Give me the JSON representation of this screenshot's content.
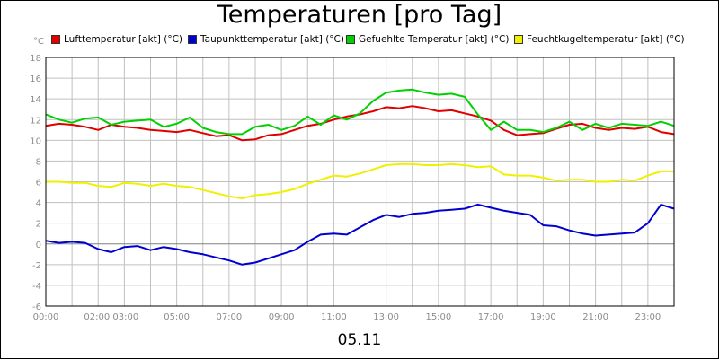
{
  "colors": {
    "background": "#ffffff",
    "grid": "#c0c0c0",
    "axis": "#000000",
    "tick_text": "#8c8c8c"
  },
  "chart_data": {
    "type": "line",
    "title": "Temperaturen [pro Tag]",
    "unit": "°C",
    "xlabel": "05.11",
    "ylabel": "",
    "ylim": [
      -6,
      18
    ],
    "xlim": [
      0,
      24
    ],
    "grid": true,
    "legend_position": "top",
    "x_ticks": [
      "00:00",
      "02:00 03:00",
      "05:00",
      "07:00",
      "09:00",
      "11:00",
      "13:00",
      "15:00",
      "17:00",
      "19:00",
      "21:00",
      "23:00"
    ],
    "y_ticks": [
      "-6",
      "-4",
      "-2",
      "0",
      "2",
      "4",
      "6",
      "8",
      "10",
      "12",
      "14",
      "16",
      "18"
    ],
    "series": [
      {
        "name": "Lufttemperatur [akt] (°C)",
        "color": "#e00000",
        "points": [
          [
            0,
            11.4
          ],
          [
            0.5,
            11.6
          ],
          [
            1,
            11.5
          ],
          [
            1.5,
            11.3
          ],
          [
            2,
            11.0
          ],
          [
            2.5,
            11.5
          ],
          [
            3,
            11.3
          ],
          [
            3.5,
            11.2
          ],
          [
            4,
            11.0
          ],
          [
            4.5,
            10.9
          ],
          [
            5,
            10.8
          ],
          [
            5.5,
            11.0
          ],
          [
            6,
            10.7
          ],
          [
            6.5,
            10.4
          ],
          [
            7,
            10.5
          ],
          [
            7.5,
            10.0
          ],
          [
            8,
            10.1
          ],
          [
            8.5,
            10.5
          ],
          [
            9,
            10.6
          ],
          [
            9.5,
            11.0
          ],
          [
            10,
            11.4
          ],
          [
            10.5,
            11.6
          ],
          [
            11,
            12.0
          ],
          [
            11.5,
            12.3
          ],
          [
            12,
            12.5
          ],
          [
            12.5,
            12.8
          ],
          [
            13,
            13.2
          ],
          [
            13.5,
            13.1
          ],
          [
            14,
            13.3
          ],
          [
            14.5,
            13.1
          ],
          [
            15,
            12.8
          ],
          [
            15.5,
            12.9
          ],
          [
            16,
            12.6
          ],
          [
            16.5,
            12.3
          ],
          [
            17,
            11.9
          ],
          [
            17.5,
            11.0
          ],
          [
            18,
            10.5
          ],
          [
            18.5,
            10.6
          ],
          [
            19,
            10.7
          ],
          [
            19.5,
            11.1
          ],
          [
            20,
            11.5
          ],
          [
            20.5,
            11.6
          ],
          [
            21,
            11.2
          ],
          [
            21.5,
            11.0
          ],
          [
            22,
            11.2
          ],
          [
            22.5,
            11.1
          ],
          [
            23,
            11.3
          ],
          [
            23.5,
            10.8
          ],
          [
            24,
            10.6
          ]
        ]
      },
      {
        "name": "Taupunkttemperatur [akt] (°C)",
        "color": "#0000d0",
        "points": [
          [
            0,
            0.3
          ],
          [
            0.5,
            0.1
          ],
          [
            1,
            0.2
          ],
          [
            1.5,
            0.1
          ],
          [
            2,
            -0.5
          ],
          [
            2.5,
            -0.8
          ],
          [
            3,
            -0.3
          ],
          [
            3.5,
            -0.2
          ],
          [
            4,
            -0.6
          ],
          [
            4.5,
            -0.3
          ],
          [
            5,
            -0.5
          ],
          [
            5.5,
            -0.8
          ],
          [
            6,
            -1.0
          ],
          [
            6.5,
            -1.3
          ],
          [
            7,
            -1.6
          ],
          [
            7.5,
            -2.0
          ],
          [
            8,
            -1.8
          ],
          [
            8.5,
            -1.4
          ],
          [
            9,
            -1.0
          ],
          [
            9.5,
            -0.6
          ],
          [
            10,
            0.2
          ],
          [
            10.5,
            0.9
          ],
          [
            11,
            1.0
          ],
          [
            11.5,
            0.9
          ],
          [
            12,
            1.6
          ],
          [
            12.5,
            2.3
          ],
          [
            13,
            2.8
          ],
          [
            13.5,
            2.6
          ],
          [
            14,
            2.9
          ],
          [
            14.5,
            3.0
          ],
          [
            15,
            3.2
          ],
          [
            15.5,
            3.3
          ],
          [
            16,
            3.4
          ],
          [
            16.5,
            3.8
          ],
          [
            17,
            3.5
          ],
          [
            17.5,
            3.2
          ],
          [
            18,
            3.0
          ],
          [
            18.5,
            2.8
          ],
          [
            19,
            1.8
          ],
          [
            19.5,
            1.7
          ],
          [
            20,
            1.3
          ],
          [
            20.5,
            1.0
          ],
          [
            21,
            0.8
          ],
          [
            21.5,
            0.9
          ],
          [
            22,
            1.0
          ],
          [
            22.5,
            1.1
          ],
          [
            23,
            2.0
          ],
          [
            23.5,
            3.8
          ],
          [
            24,
            3.4
          ]
        ]
      },
      {
        "name": "Gefuehlte Temperatur [akt] (°C)",
        "color": "#00d000",
        "points": [
          [
            0,
            12.5
          ],
          [
            0.5,
            12.0
          ],
          [
            1,
            11.7
          ],
          [
            1.5,
            12.1
          ],
          [
            2,
            12.2
          ],
          [
            2.5,
            11.5
          ],
          [
            3,
            11.8
          ],
          [
            3.5,
            11.9
          ],
          [
            4,
            12.0
          ],
          [
            4.5,
            11.3
          ],
          [
            5,
            11.6
          ],
          [
            5.5,
            12.2
          ],
          [
            6,
            11.2
          ],
          [
            6.5,
            10.8
          ],
          [
            7,
            10.6
          ],
          [
            7.5,
            10.6
          ],
          [
            8,
            11.3
          ],
          [
            8.5,
            11.5
          ],
          [
            9,
            11.0
          ],
          [
            9.5,
            11.4
          ],
          [
            10,
            12.3
          ],
          [
            10.5,
            11.5
          ],
          [
            11,
            12.4
          ],
          [
            11.5,
            12.0
          ],
          [
            12,
            12.6
          ],
          [
            12.5,
            13.8
          ],
          [
            13,
            14.6
          ],
          [
            13.5,
            14.8
          ],
          [
            14,
            14.9
          ],
          [
            14.5,
            14.6
          ],
          [
            15,
            14.4
          ],
          [
            15.5,
            14.5
          ],
          [
            16,
            14.2
          ],
          [
            16.5,
            12.5
          ],
          [
            17,
            11.0
          ],
          [
            17.5,
            11.8
          ],
          [
            18,
            11.0
          ],
          [
            18.5,
            11.0
          ],
          [
            19,
            10.8
          ],
          [
            19.5,
            11.2
          ],
          [
            20,
            11.8
          ],
          [
            20.5,
            11.0
          ],
          [
            21,
            11.6
          ],
          [
            21.5,
            11.2
          ],
          [
            22,
            11.6
          ],
          [
            22.5,
            11.5
          ],
          [
            23,
            11.4
          ],
          [
            23.5,
            11.8
          ],
          [
            24,
            11.4
          ]
        ]
      },
      {
        "name": "Feuchtkugeltemperatur [akt] (°C)",
        "color": "#f0f000",
        "points": [
          [
            0,
            6.0
          ],
          [
            0.5,
            6.0
          ],
          [
            1,
            5.9
          ],
          [
            1.5,
            5.9
          ],
          [
            2,
            5.6
          ],
          [
            2.5,
            5.5
          ],
          [
            3,
            5.9
          ],
          [
            3.5,
            5.8
          ],
          [
            4,
            5.6
          ],
          [
            4.5,
            5.8
          ],
          [
            5,
            5.6
          ],
          [
            5.5,
            5.5
          ],
          [
            6,
            5.2
          ],
          [
            6.5,
            4.9
          ],
          [
            7,
            4.6
          ],
          [
            7.5,
            4.4
          ],
          [
            8,
            4.7
          ],
          [
            8.5,
            4.8
          ],
          [
            9,
            5.0
          ],
          [
            9.5,
            5.3
          ],
          [
            10,
            5.8
          ],
          [
            10.5,
            6.2
          ],
          [
            11,
            6.6
          ],
          [
            11.5,
            6.5
          ],
          [
            12,
            6.8
          ],
          [
            12.5,
            7.2
          ],
          [
            13,
            7.6
          ],
          [
            13.5,
            7.7
          ],
          [
            14,
            7.7
          ],
          [
            14.5,
            7.6
          ],
          [
            15,
            7.6
          ],
          [
            15.5,
            7.7
          ],
          [
            16,
            7.6
          ],
          [
            16.5,
            7.4
          ],
          [
            17,
            7.5
          ],
          [
            17.5,
            6.7
          ],
          [
            18,
            6.6
          ],
          [
            18.5,
            6.6
          ],
          [
            19,
            6.4
          ],
          [
            19.5,
            6.1
          ],
          [
            20,
            6.2
          ],
          [
            20.5,
            6.2
          ],
          [
            21,
            6.0
          ],
          [
            21.5,
            6.0
          ],
          [
            22,
            6.2
          ],
          [
            22.5,
            6.1
          ],
          [
            23,
            6.6
          ],
          [
            23.5,
            7.0
          ],
          [
            24,
            7.0
          ]
        ]
      }
    ]
  }
}
